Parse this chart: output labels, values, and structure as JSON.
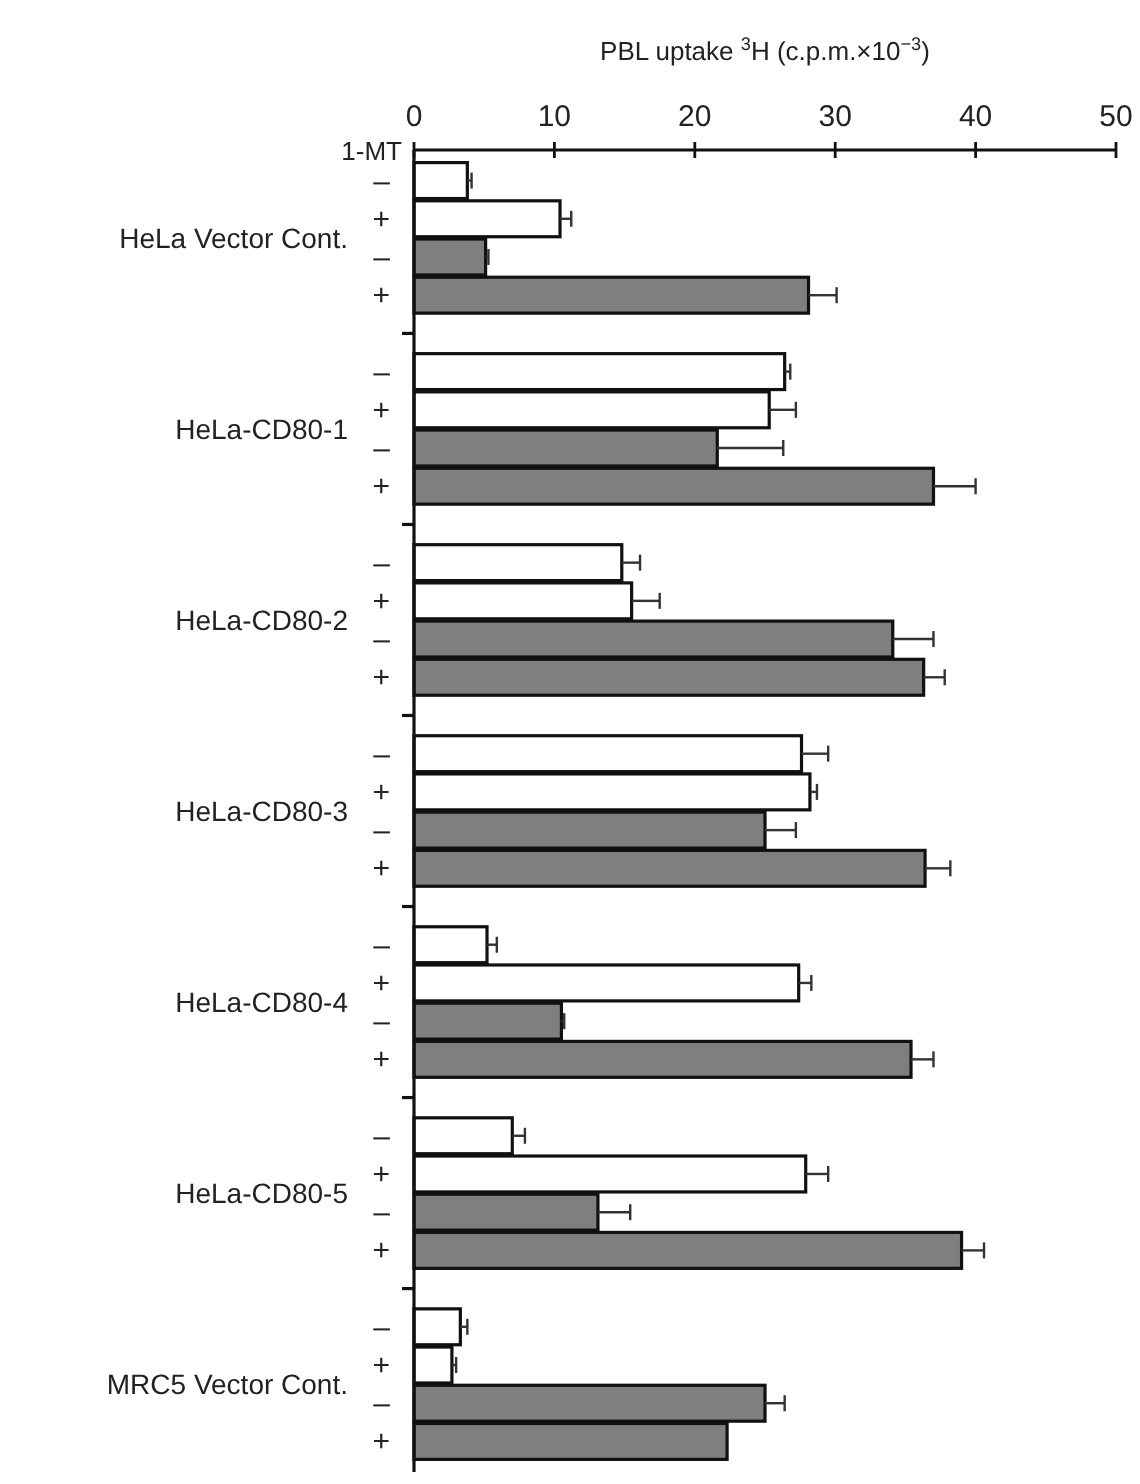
{
  "chart_data": {
    "type": "bar",
    "orientation": "horizontal",
    "xlabel": "PBL uptake $^{3}$H (c.p.m.×10$^{−3}$)",
    "ylabel": "1-MT",
    "categories": [
      "–",
      "+",
      "–",
      "+",
      null,
      "–",
      "+",
      "–",
      "+",
      null,
      "–",
      "+",
      "–",
      "+",
      null,
      "–",
      "+",
      "–",
      "+",
      null,
      "–",
      "+",
      "–",
      "+",
      null,
      "–",
      "+",
      "–",
      "+",
      null,
      "–",
      "+",
      "–",
      "+"
    ],
    "annotations": [
      "HeLa Vector Cont.",
      "HeLa-CD80-1",
      "HeLa-CD80-2",
      "HeLa-CD80-3",
      "HeLa-CD80-4",
      "HeLa-CD80-5",
      "MRC5 Vector Cont."
    ],
    "series": [
      {
        "color": "#ffffff",
        "values": [
          3.8,
          10.4,
          null,
          null,
          null,
          26.4,
          25.3,
          null,
          null,
          null,
          14.8,
          15.5,
          null,
          null,
          null,
          27.6,
          28.2,
          null,
          null,
          null,
          5.2,
          27.4,
          null,
          null,
          null,
          7.0,
          27.9,
          null,
          null,
          null,
          3.3,
          2.7,
          null,
          null
        ],
        "errors": [
          0.3,
          0.8,
          null,
          null,
          null,
          0.4,
          1.9,
          null,
          null,
          null,
          1.3,
          2.0,
          null,
          null,
          null,
          1.9,
          0.5,
          null,
          null,
          null,
          0.7,
          0.9,
          null,
          null,
          null,
          0.9,
          1.6,
          null,
          null,
          null,
          0.5,
          0.3,
          null,
          null
        ]
      },
      {
        "color": "#7f7f7f",
        "values": [
          null,
          null,
          5.1,
          28.1,
          null,
          null,
          null,
          21.6,
          37.0,
          null,
          null,
          null,
          34.1,
          36.3,
          null,
          null,
          null,
          25.0,
          36.4,
          null,
          null,
          null,
          10.5,
          35.4,
          null,
          null,
          null,
          13.1,
          39.0,
          null,
          null,
          null,
          25.0,
          22.3
        ],
        "errors": [
          null,
          null,
          0.2,
          2.0,
          null,
          null,
          null,
          4.7,
          3.0,
          null,
          null,
          null,
          2.9,
          1.5,
          null,
          null,
          null,
          2.2,
          1.8,
          null,
          null,
          null,
          0.2,
          1.6,
          null,
          null,
          null,
          2.3,
          1.6,
          null,
          null,
          null,
          1.4,
          null
        ]
      }
    ],
    "xlim": [
      0,
      50
    ],
    "xticks": [
      0,
      10,
      20,
      30,
      40,
      50
    ],
    "grid": false
  }
}
